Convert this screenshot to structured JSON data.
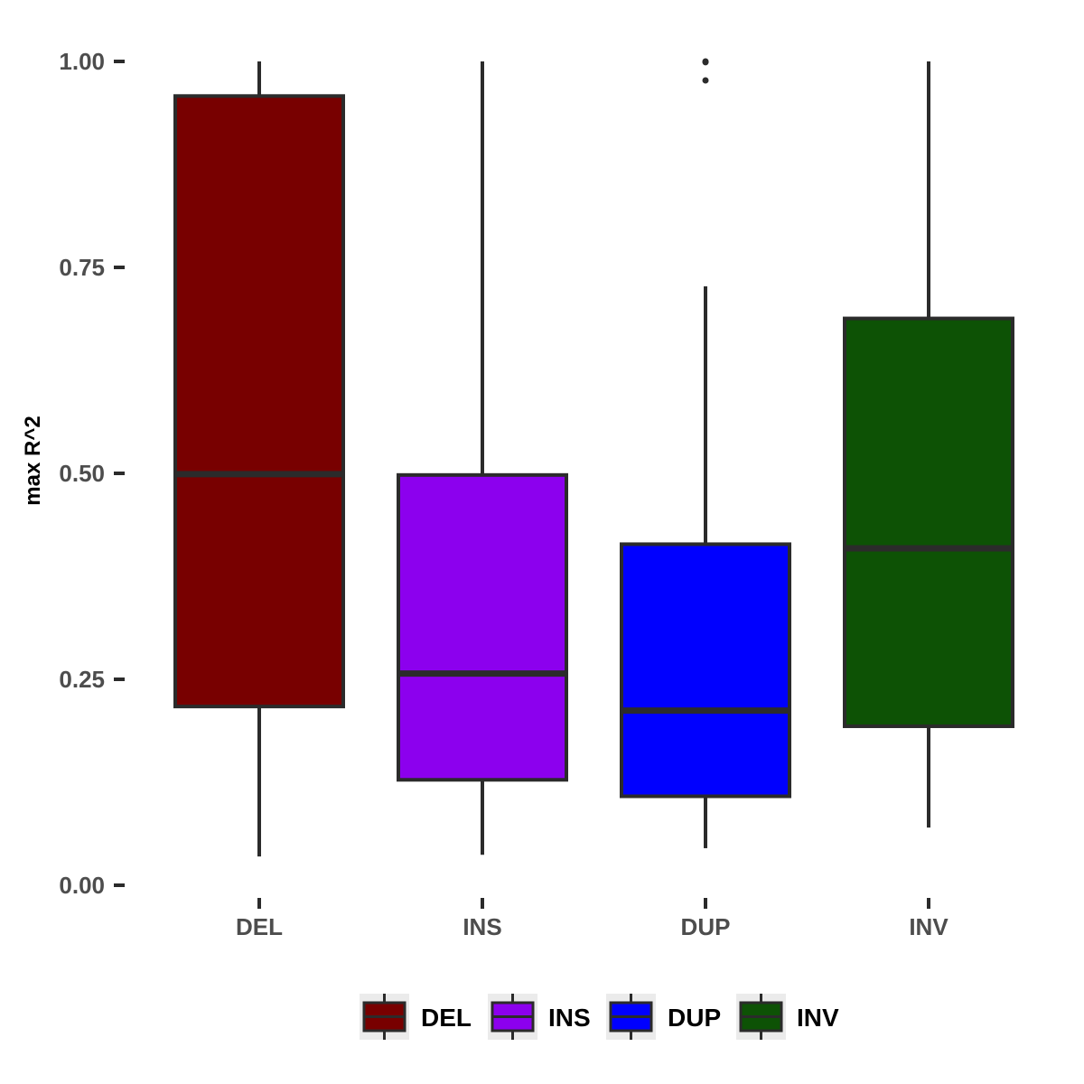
{
  "chart_data": {
    "type": "boxplot",
    "title": "",
    "xlabel": "",
    "ylabel": "max R^2",
    "ylim": [
      0,
      1
    ],
    "yticks": [
      "0.00",
      "0.25",
      "0.50",
      "0.75",
      "1.00"
    ],
    "ytick_values": [
      0,
      0.25,
      0.5,
      0.75,
      1.0
    ],
    "categories": [
      "DEL",
      "INS",
      "DUP",
      "INV"
    ],
    "grid": false,
    "legend_position": "bottom",
    "series": [
      {
        "name": "DEL",
        "color": "#780000",
        "min": 0.035,
        "q1": 0.217,
        "median": 0.499,
        "q3": 0.958,
        "max": 1.0,
        "outliers": []
      },
      {
        "name": "INS",
        "color": "#8c00ee",
        "min": 0.037,
        "q1": 0.128,
        "median": 0.257,
        "q3": 0.498,
        "max": 1.0,
        "outliers": []
      },
      {
        "name": "DUP",
        "color": "#0000ff",
        "min": 0.045,
        "q1": 0.108,
        "median": 0.212,
        "q3": 0.414,
        "max": 0.727,
        "outliers": [
          0.977,
          0.999,
          1.0
        ]
      },
      {
        "name": "INV",
        "color": "#0d5205",
        "min": 0.07,
        "q1": 0.193,
        "median": 0.409,
        "q3": 0.688,
        "max": 1.0,
        "outliers": []
      }
    ]
  }
}
